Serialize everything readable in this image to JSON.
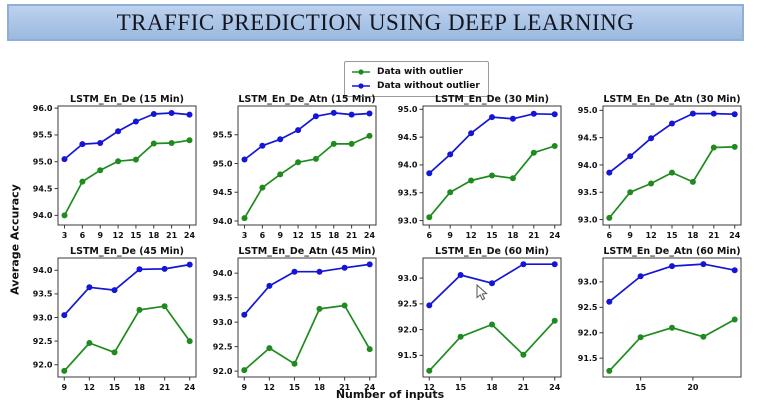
{
  "banner": {
    "title": "TRAFFIC PREDICTION USING DEEP LEARNING",
    "bg_color": "#a9c4e6",
    "border_color": "#8fafd6"
  },
  "legend": {
    "items": [
      {
        "label": "Data with outlier",
        "color": "#1f8b1f"
      },
      {
        "label": "Data without outlier",
        "color": "#1515d6"
      }
    ]
  },
  "axes": {
    "ylabel": "Average Accuracy",
    "xlabel": "Number of inputs"
  },
  "chart_data": [
    {
      "type": "line",
      "title": "LSTM_En_De (15 Min)",
      "x": [
        3,
        6,
        9,
        12,
        15,
        18,
        21,
        24
      ],
      "xticks": [
        3,
        6,
        9,
        12,
        15,
        18,
        21,
        24
      ],
      "yticks": [
        94.0,
        94.5,
        95.0,
        95.5,
        96.0
      ],
      "xlim": [
        1.9,
        25.1
      ],
      "ylim": [
        93.82,
        96.04
      ],
      "series": [
        {
          "name": "Data with outlier",
          "color": "#1f8b1f",
          "values": [
            94.0,
            94.63,
            94.84,
            95.01,
            95.04,
            95.34,
            95.35,
            95.4
          ]
        },
        {
          "name": "Data without outlier",
          "color": "#1515d6",
          "values": [
            95.05,
            95.33,
            95.35,
            95.57,
            95.75,
            95.89,
            95.91,
            95.88
          ]
        }
      ]
    },
    {
      "type": "line",
      "title": "LSTM_En_De_Atn (15 Min)",
      "x": [
        3,
        6,
        9,
        12,
        15,
        18,
        21,
        24
      ],
      "xticks": [
        3,
        6,
        9,
        12,
        15,
        18,
        21,
        24
      ],
      "yticks": [
        94.0,
        94.5,
        95.0,
        95.5
      ],
      "xlim": [
        1.9,
        25.1
      ],
      "ylim": [
        93.93,
        96.0
      ],
      "series": [
        {
          "name": "Data with outlier",
          "color": "#1f8b1f",
          "values": [
            94.05,
            94.58,
            94.81,
            95.02,
            95.08,
            95.34,
            95.34,
            95.48
          ]
        },
        {
          "name": "Data without outlier",
          "color": "#1515d6",
          "values": [
            95.07,
            95.31,
            95.42,
            95.58,
            95.82,
            95.88,
            95.85,
            95.87
          ]
        }
      ]
    },
    {
      "type": "line",
      "title": "LSTM_En_De (30 Min)",
      "x": [
        6,
        9,
        12,
        15,
        18,
        21,
        24
      ],
      "xticks": [
        6,
        9,
        12,
        15,
        18,
        21,
        24
      ],
      "yticks": [
        93.0,
        93.5,
        94.0,
        94.5,
        95.0
      ],
      "xlim": [
        5.1,
        24.9
      ],
      "ylim": [
        92.92,
        95.06
      ],
      "series": [
        {
          "name": "Data with outlier",
          "color": "#1f8b1f",
          "values": [
            93.06,
            93.51,
            93.72,
            93.81,
            93.76,
            94.22,
            94.34
          ]
        },
        {
          "name": "Data without outlier",
          "color": "#1515d6",
          "values": [
            93.85,
            94.19,
            94.57,
            94.86,
            94.83,
            94.92,
            94.91
          ]
        }
      ]
    },
    {
      "type": "line",
      "title": "LSTM_En_De_Atn (30 Min)",
      "x": [
        6,
        9,
        12,
        15,
        18,
        21,
        24
      ],
      "xticks": [
        6,
        9,
        12,
        15,
        18,
        21,
        24
      ],
      "yticks": [
        93.0,
        93.5,
        94.0,
        94.5,
        95.0
      ],
      "xlim": [
        5.1,
        24.9
      ],
      "ylim": [
        92.9,
        95.08
      ],
      "series": [
        {
          "name": "Data with outlier",
          "color": "#1f8b1f",
          "values": [
            93.03,
            93.5,
            93.66,
            93.86,
            93.69,
            94.32,
            94.33
          ]
        },
        {
          "name": "Data without outlier",
          "color": "#1515d6",
          "values": [
            93.86,
            94.16,
            94.49,
            94.76,
            94.94,
            94.94,
            94.93
          ]
        }
      ]
    },
    {
      "type": "line",
      "title": "LSTM_En_De (45 Min)",
      "x": [
        9,
        12,
        15,
        18,
        21,
        24
      ],
      "xticks": [
        9,
        12,
        15,
        18,
        21,
        24
      ],
      "yticks": [
        92.0,
        92.5,
        93.0,
        93.5,
        94.0
      ],
      "xlim": [
        8.25,
        24.75
      ],
      "ylim": [
        91.74,
        94.26
      ],
      "series": [
        {
          "name": "Data with outlier",
          "color": "#1f8b1f",
          "values": [
            91.87,
            92.46,
            92.26,
            93.16,
            93.24,
            92.5
          ]
        },
        {
          "name": "Data without outlier",
          "color": "#1515d6",
          "values": [
            93.05,
            93.64,
            93.58,
            94.02,
            94.03,
            94.12
          ]
        }
      ]
    },
    {
      "type": "line",
      "title": "LSTM_En_De_Atn (45 Min)",
      "x": [
        9,
        12,
        15,
        18,
        21,
        24
      ],
      "xticks": [
        9,
        12,
        15,
        18,
        21,
        24
      ],
      "yticks": [
        92.0,
        92.5,
        93.0,
        93.5,
        94.0
      ],
      "xlim": [
        8.25,
        24.75
      ],
      "ylim": [
        91.88,
        94.31
      ],
      "series": [
        {
          "name": "Data with outlier",
          "color": "#1f8b1f",
          "values": [
            92.02,
            92.47,
            92.15,
            93.27,
            93.34,
            92.45
          ]
        },
        {
          "name": "Data without outlier",
          "color": "#1515d6",
          "values": [
            93.15,
            93.74,
            94.03,
            94.03,
            94.11,
            94.18
          ]
        }
      ]
    },
    {
      "type": "line",
      "title": "LSTM_En_De (60 Min)",
      "x": [
        12,
        15,
        18,
        21,
        24
      ],
      "xticks": [
        12,
        15,
        18,
        21,
        24
      ],
      "yticks": [
        91.5,
        92.0,
        92.5,
        93.0
      ],
      "xlim": [
        11.4,
        24.6
      ],
      "ylim": [
        91.08,
        93.39
      ],
      "series": [
        {
          "name": "Data with outlier",
          "color": "#1f8b1f",
          "values": [
            91.2,
            91.86,
            92.1,
            91.51,
            92.17
          ]
        },
        {
          "name": "Data without outlier",
          "color": "#1515d6",
          "values": [
            92.47,
            93.06,
            92.9,
            93.27,
            93.27
          ]
        }
      ]
    },
    {
      "type": "line",
      "title": "LSTM_En_De_Atn (60 Min)",
      "x": [
        12,
        15,
        18,
        21,
        24
      ],
      "xticks": [
        15,
        20
      ],
      "yticks": [
        91.5,
        92.0,
        92.5,
        93.0
      ],
      "xlim": [
        11.4,
        24.6
      ],
      "ylim": [
        91.13,
        93.47
      ],
      "series": [
        {
          "name": "Data with outlier",
          "color": "#1f8b1f",
          "values": [
            91.25,
            91.91,
            92.1,
            91.92,
            92.26
          ]
        },
        {
          "name": "Data without outlier",
          "color": "#1515d6",
          "values": [
            92.61,
            93.11,
            93.31,
            93.35,
            93.23
          ]
        }
      ]
    }
  ]
}
